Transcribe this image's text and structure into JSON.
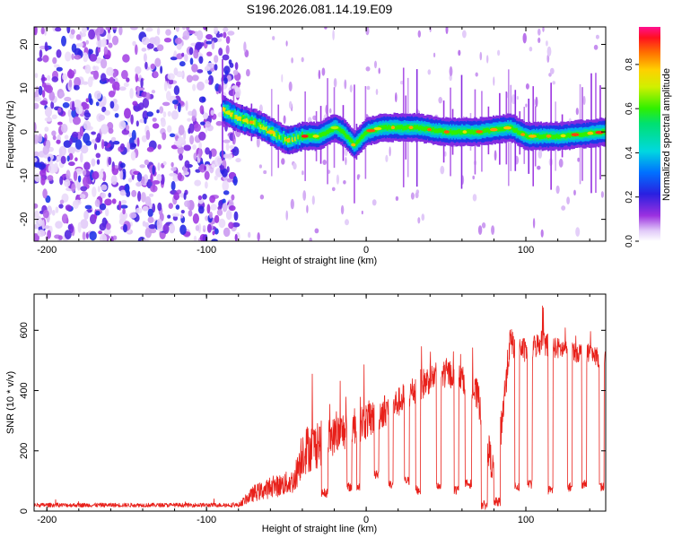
{
  "title": "S196.2026.081.14.19.E09",
  "colors": {
    "axis": "#000000",
    "snr_line": "#e8201a"
  },
  "chart_data": [
    {
      "type": "heatmap",
      "xlabel": "Height of straight line (km)",
      "ylabel": "Frequency (Hz)",
      "xlim": [
        -208,
        150
      ],
      "ylim": [
        -25,
        24
      ],
      "xticks": [
        -200,
        -100,
        0,
        100
      ],
      "yticks": [
        -20,
        -10,
        0,
        10,
        20
      ],
      "colorbar": {
        "label": "Normalized spectral amplitude",
        "range": [
          0.0,
          0.97
        ],
        "ticks": [
          "0.0",
          "0.2",
          "0.4",
          "0.6",
          "0.8"
        ],
        "tick_values": [
          0.0,
          0.2,
          0.4,
          0.6,
          0.8
        ]
      },
      "noise_region": {
        "x_start": -208,
        "x_end": -80
      },
      "ridge": [
        {
          "x": -90,
          "f": 5
        },
        {
          "x": -80,
          "f": 3
        },
        {
          "x": -70,
          "f": 2
        },
        {
          "x": -60,
          "f": 0
        },
        {
          "x": -50,
          "f": -2
        },
        {
          "x": -40,
          "f": -1
        },
        {
          "x": -30,
          "f": -1
        },
        {
          "x": -20,
          "f": 1
        },
        {
          "x": -15,
          "f": 0
        },
        {
          "x": -8,
          "f": -3
        },
        {
          "x": 0,
          "f": 0
        },
        {
          "x": 10,
          "f": 1
        },
        {
          "x": 30,
          "f": 1
        },
        {
          "x": 50,
          "f": 0
        },
        {
          "x": 70,
          "f": 0
        },
        {
          "x": 90,
          "f": 1
        },
        {
          "x": 100,
          "f": -1
        },
        {
          "x": 110,
          "f": -1
        },
        {
          "x": 120,
          "f": -1
        },
        {
          "x": 150,
          "f": 0
        }
      ]
    },
    {
      "type": "line",
      "xlabel": "Height of straight line (km)",
      "ylabel": "SNR (10 * v/v)",
      "xlim": [
        -208,
        150
      ],
      "ylim": [
        0,
        720
      ],
      "xticks": [
        -200,
        -100,
        0,
        100
      ],
      "yticks": [
        0,
        200,
        400,
        600
      ],
      "envelope": [
        {
          "x": -208,
          "base": 20,
          "noise": 10
        },
        {
          "x": -80,
          "base": 20,
          "noise": 10
        },
        {
          "x": -70,
          "base": 60,
          "noise": 40
        },
        {
          "x": -45,
          "base": 100,
          "noise": 60
        },
        {
          "x": -40,
          "base": 200,
          "noise": 120
        },
        {
          "x": -30,
          "base": 220,
          "noise": 110
        },
        {
          "x": -20,
          "base": 250,
          "noise": 90
        },
        {
          "x": -10,
          "base": 280,
          "noise": 100
        },
        {
          "x": 0,
          "base": 300,
          "noise": 90
        },
        {
          "x": 10,
          "base": 330,
          "noise": 80
        },
        {
          "x": 20,
          "base": 360,
          "noise": 70
        },
        {
          "x": 30,
          "base": 400,
          "noise": 80
        },
        {
          "x": 40,
          "base": 440,
          "noise": 70
        },
        {
          "x": 50,
          "base": 460,
          "noise": 70
        },
        {
          "x": 60,
          "base": 440,
          "noise": 60
        },
        {
          "x": 70,
          "base": 380,
          "noise": 80
        },
        {
          "x": 80,
          "base": 120,
          "noise": 80
        },
        {
          "x": 85,
          "base": 300,
          "noise": 100
        },
        {
          "x": 90,
          "base": 560,
          "noise": 70
        },
        {
          "x": 100,
          "base": 530,
          "noise": 60
        },
        {
          "x": 110,
          "base": 560,
          "noise": 60
        },
        {
          "x": 120,
          "base": 540,
          "noise": 50
        },
        {
          "x": 130,
          "base": 530,
          "noise": 50
        },
        {
          "x": 140,
          "base": 520,
          "noise": 50
        },
        {
          "x": 150,
          "base": 500,
          "noise": 40
        }
      ],
      "dropouts": [
        {
          "x0": -28,
          "x1": -24,
          "level": 60
        },
        {
          "x0": -12,
          "x1": -9,
          "level": 80
        },
        {
          "x0": -6,
          "x1": -4,
          "level": 80
        },
        {
          "x0": 5,
          "x1": 8,
          "level": 120
        },
        {
          "x0": 14,
          "x1": 17,
          "level": 90
        },
        {
          "x0": 24,
          "x1": 27,
          "level": 100
        },
        {
          "x0": 31,
          "x1": 34,
          "level": 70
        },
        {
          "x0": 44,
          "x1": 47,
          "level": 80
        },
        {
          "x0": 55,
          "x1": 58,
          "level": 70
        },
        {
          "x0": 62,
          "x1": 66,
          "level": 90
        },
        {
          "x0": 72,
          "x1": 76,
          "level": 20
        },
        {
          "x0": 80,
          "x1": 84,
          "level": 30
        },
        {
          "x0": 93,
          "x1": 96,
          "level": 80
        },
        {
          "x0": 101,
          "x1": 104,
          "level": 90
        },
        {
          "x0": 114,
          "x1": 117,
          "level": 70
        },
        {
          "x0": 126,
          "x1": 129,
          "level": 80
        },
        {
          "x0": 135,
          "x1": 138,
          "level": 90
        },
        {
          "x0": 146,
          "x1": 149,
          "level": 80
        }
      ]
    }
  ]
}
